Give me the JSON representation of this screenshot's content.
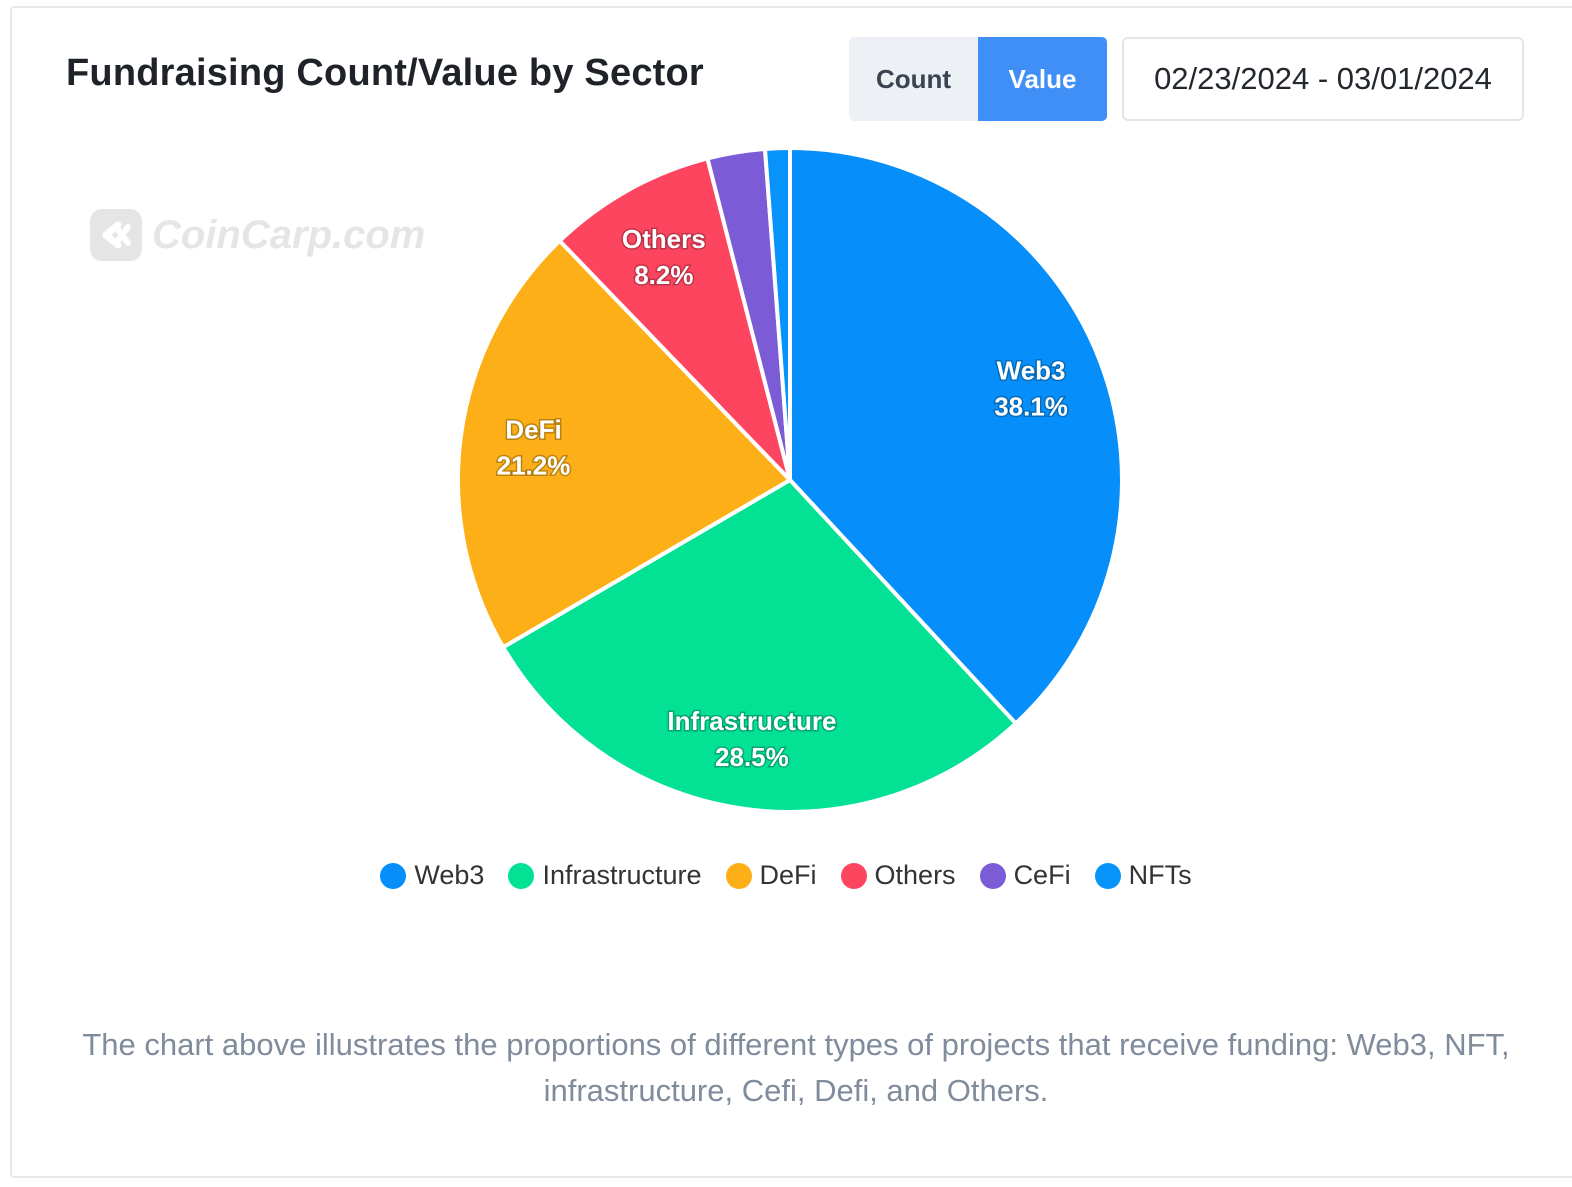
{
  "header": {
    "title": "Fundraising Count/Value by Sector",
    "toggle": {
      "count_label": "Count",
      "value_label": "Value",
      "active": "Value"
    },
    "date_range": "02/23/2024 - 03/01/2024"
  },
  "watermark": {
    "text": "CoinCarp.com"
  },
  "colors": {
    "Web3": "#068ffa",
    "Infrastructure": "#03e195",
    "DeFi": "#fcaf17",
    "Others": "#fe4560",
    "CeFi": "#7b5cd6",
    "NFTs": "#0893fb",
    "active_toggle": "#3f8ff7"
  },
  "chart_data": {
    "type": "pie",
    "title": "Fundraising Count/Value by Sector",
    "slices": [
      {
        "label": "Web3",
        "value": 38.1,
        "display": "38.1%"
      },
      {
        "label": "Infrastructure",
        "value": 28.5,
        "display": "28.5%"
      },
      {
        "label": "DeFi",
        "value": 21.2,
        "display": "21.2%"
      },
      {
        "label": "Others",
        "value": 8.2,
        "display": "8.2%"
      },
      {
        "label": "CeFi",
        "value": 2.8,
        "display": ""
      },
      {
        "label": "NFTs",
        "value": 1.2,
        "display": ""
      }
    ],
    "legend_position": "bottom-center"
  },
  "caption": "The chart above illustrates the proportions of different types of projects that receive funding: Web3, NFT, infrastructure, Cefi, Defi, and Others."
}
